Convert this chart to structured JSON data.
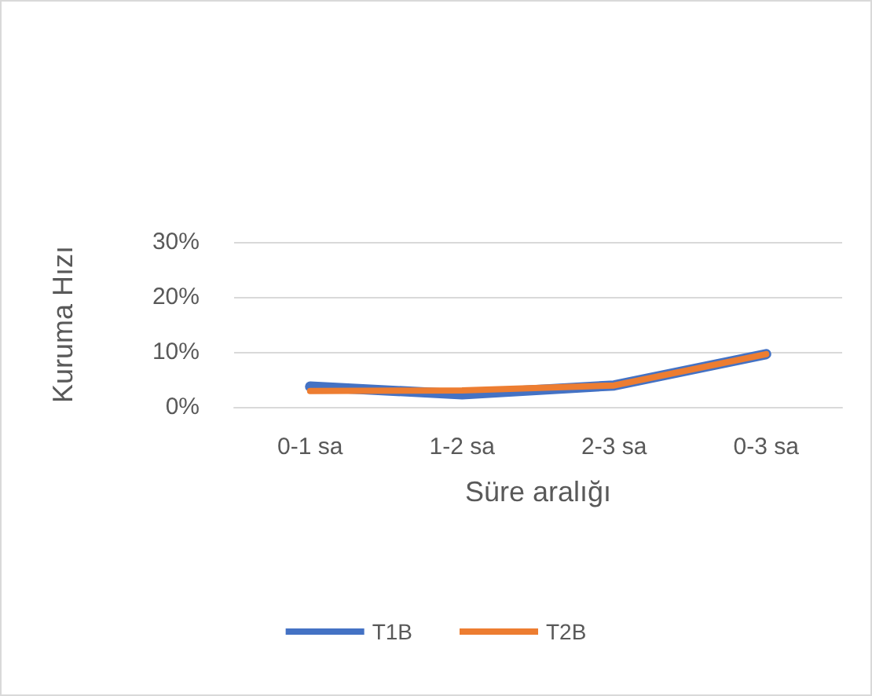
{
  "chart_data": {
    "type": "line",
    "xlabel": "Süre aralığı",
    "ylabel": "Kuruma Hızı",
    "categories": [
      "0-1 sa",
      "1-2 sa",
      "2-3 sa",
      "0-3 sa"
    ],
    "series": [
      {
        "name": "T1B",
        "color": "#4472c4",
        "values": [
          3.7,
          2.3,
          3.9,
          9.6
        ]
      },
      {
        "name": "T2B",
        "color": "#ed7d31",
        "values": [
          2.9,
          3.0,
          3.9,
          9.6
        ]
      }
    ],
    "ylim": [
      0,
      30
    ],
    "yticks": [
      {
        "value": 0,
        "label": "0%"
      },
      {
        "value": 10,
        "label": "10%"
      },
      {
        "value": 20,
        "label": "20%"
      },
      {
        "value": 30,
        "label": "30%"
      }
    ],
    "grid": "y",
    "legend": "bottom",
    "marker": "none",
    "line_style": "solid"
  }
}
